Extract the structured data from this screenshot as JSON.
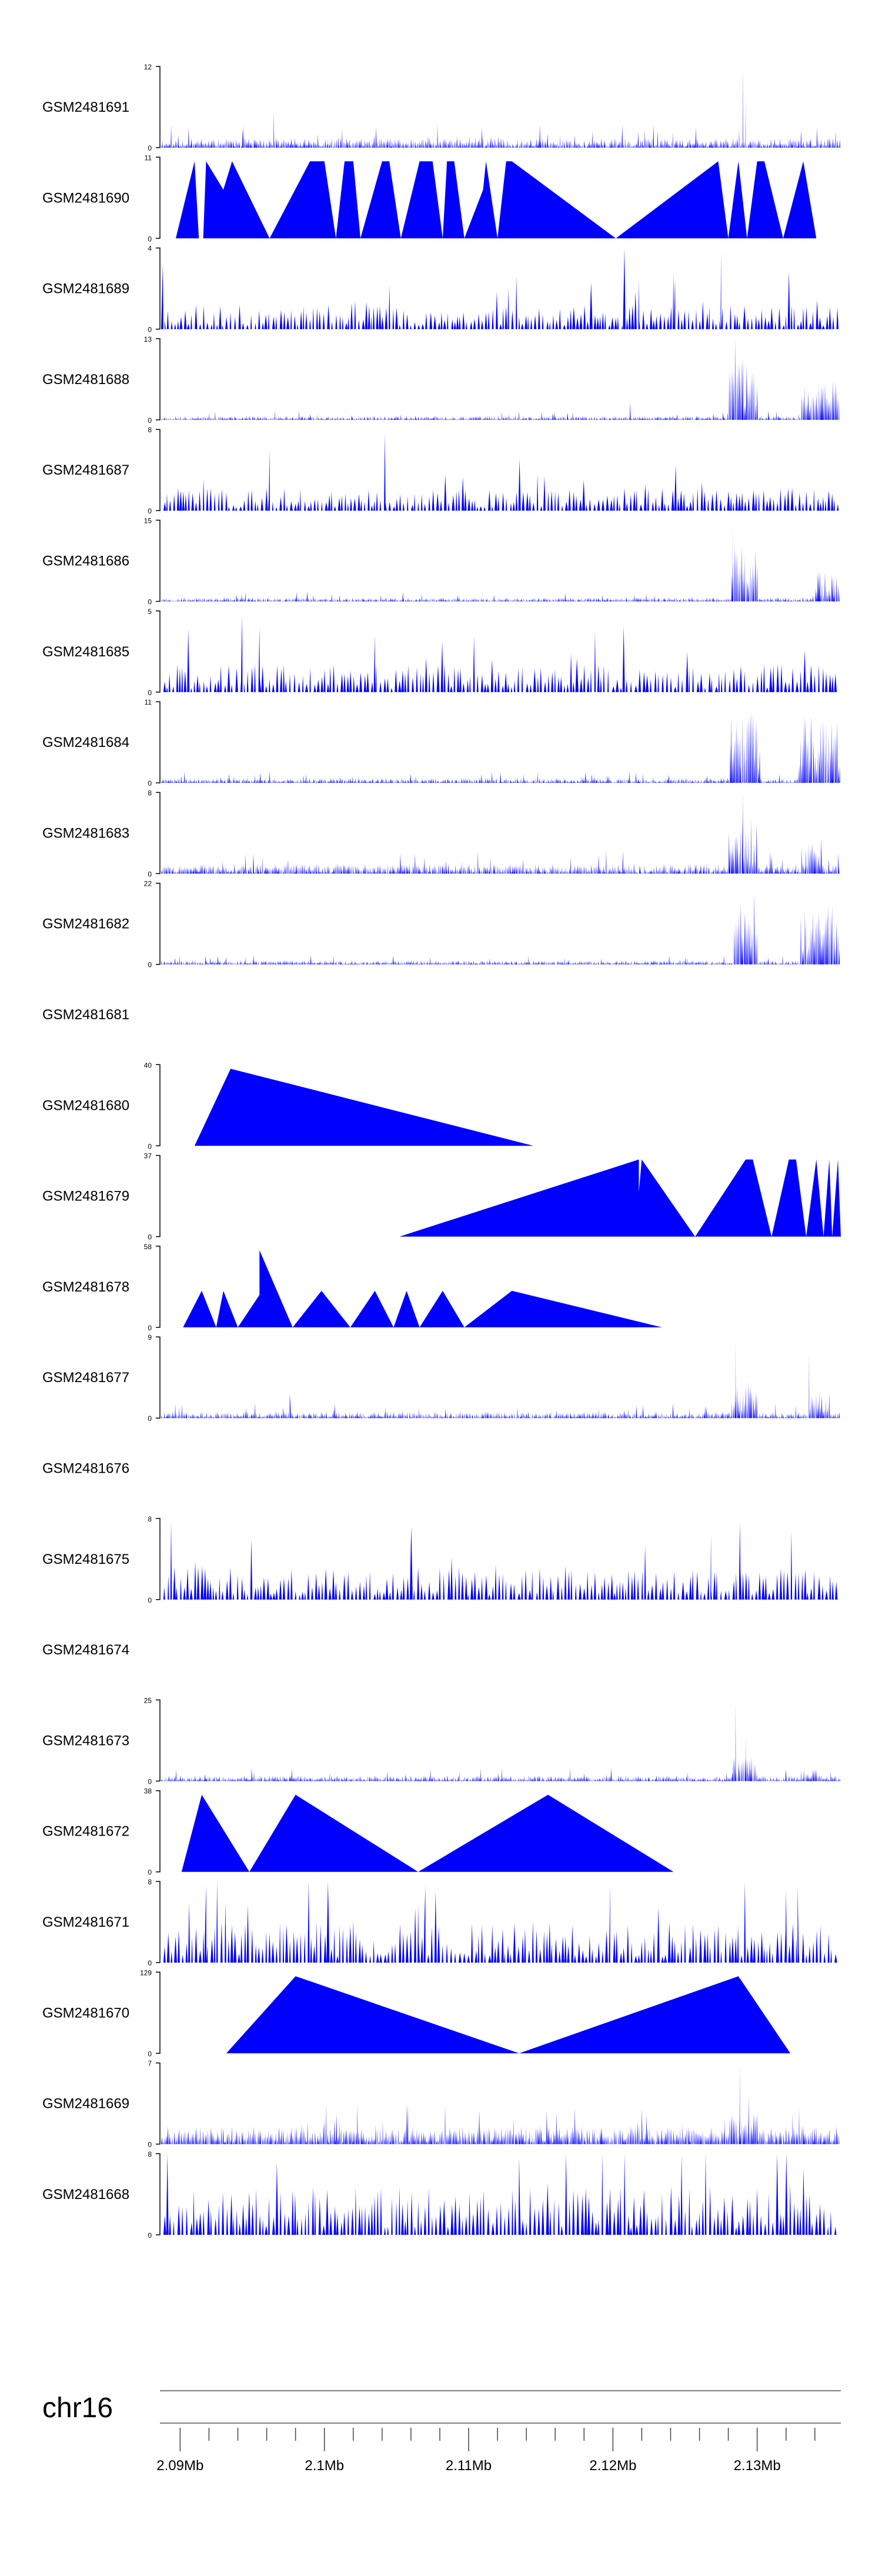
{
  "chart_data": {
    "type": "area",
    "color": "#0000ff",
    "chromosome": "chr16",
    "x_range_mb": [
      2.0886,
      2.1358
    ],
    "x_ticks": [
      {
        "value": 2.09,
        "label": "2.09Mb"
      },
      {
        "value": 2.1,
        "label": "2.1Mb"
      },
      {
        "value": 2.11,
        "label": "2.11Mb"
      },
      {
        "value": 2.12,
        "label": "2.12Mb"
      },
      {
        "value": 2.13,
        "label": "2.13Mb"
      }
    ],
    "minor_tick_step_mb": 0.002,
    "tracks": [
      {
        "name": "GSM2481691",
        "ymin": 0,
        "ymax": 12,
        "style": "dense",
        "seed": 11,
        "base": 0.12,
        "spikes": [
          [
            2.0965,
            0.45
          ],
          [
            2.129,
            1.0
          ],
          [
            2.1292,
            0.6
          ]
        ]
      },
      {
        "name": "GSM2481690",
        "ymin": 0,
        "ymax": 11,
        "profile": [
          [
            2.0897,
            0
          ],
          [
            2.091,
            0.95
          ],
          [
            2.0913,
            0
          ],
          [
            2.0916,
            0
          ],
          [
            2.0918,
            0.95
          ],
          [
            2.093,
            0.6
          ],
          [
            2.0936,
            0.95
          ],
          [
            2.0962,
            0
          ],
          [
            2.099,
            0.95
          ],
          [
            2.1,
            0.95
          ],
          [
            2.1008,
            0
          ],
          [
            2.1014,
            0.95
          ],
          [
            2.102,
            0.95
          ],
          [
            2.1025,
            0
          ],
          [
            2.104,
            0.95
          ],
          [
            2.1045,
            0.95
          ],
          [
            2.1053,
            0
          ],
          [
            2.1066,
            0.95
          ],
          [
            2.1075,
            0.95
          ],
          [
            2.1082,
            0
          ],
          [
            2.1085,
            0.95
          ],
          [
            2.109,
            0.95
          ],
          [
            2.1097,
            0
          ],
          [
            2.111,
            0.6
          ],
          [
            2.1112,
            0.95
          ],
          [
            2.112,
            0
          ],
          [
            2.1126,
            0.95
          ],
          [
            2.113,
            0.95
          ],
          [
            2.1202,
            0
          ],
          [
            2.1273,
            0.95
          ],
          [
            2.128,
            0
          ],
          [
            2.1287,
            0.95
          ],
          [
            2.1293,
            0
          ],
          [
            2.13,
            0.95
          ],
          [
            2.1305,
            0.95
          ],
          [
            2.1318,
            0
          ],
          [
            2.1332,
            0.95
          ],
          [
            2.1341,
            0
          ]
        ]
      },
      {
        "name": "GSM2481689",
        "ymin": 0,
        "ymax": 4,
        "style": "sparse",
        "seed": 23,
        "base": 0.3,
        "spikes": [
          [
            2.0888,
            0.8
          ],
          [
            2.1208,
            1.0
          ],
          [
            2.1218,
            0.6
          ],
          [
            2.1242,
            0.7
          ],
          [
            2.1275,
            0.95
          ]
        ]
      },
      {
        "name": "GSM2481688",
        "ymin": 0,
        "ymax": 13,
        "style": "dense",
        "seed": 37,
        "base": 0.05,
        "cluster": [
          2.128,
          2.13,
          0.8
        ],
        "cluster2": [
          2.133,
          2.1358,
          0.5
        ],
        "spikes": [
          [
            2.1212,
            0.22
          ],
          [
            2.1285,
            1.0
          ]
        ]
      },
      {
        "name": "GSM2481687",
        "ymin": 0,
        "ymax": 8,
        "style": "sparse",
        "seed": 41,
        "base": 0.28,
        "spikes": [
          [
            2.0962,
            0.75
          ],
          [
            2.1042,
            0.95
          ]
        ]
      },
      {
        "name": "GSM2481686",
        "ymin": 0,
        "ymax": 15,
        "style": "dense",
        "seed": 53,
        "base": 0.05,
        "cluster": [
          2.1282,
          2.13,
          0.8
        ],
        "cluster2": [
          2.134,
          2.1358,
          0.4
        ],
        "spikes": [
          [
            2.1283,
            1.0
          ]
        ]
      },
      {
        "name": "GSM2481685",
        "ymin": 0,
        "ymax": 5,
        "style": "sparse",
        "seed": 67,
        "base": 0.35,
        "spikes": [
          [
            2.0943,
            0.95
          ],
          [
            2.0955,
            0.8
          ],
          [
            2.1035,
            0.7
          ]
        ]
      },
      {
        "name": "GSM2481684",
        "ymin": 0,
        "ymax": 11,
        "style": "dense",
        "seed": 71,
        "base": 0.06,
        "cluster": [
          2.128,
          2.1302,
          0.9
        ],
        "cluster2": [
          2.1328,
          2.1358,
          0.85
        ],
        "spikes": []
      },
      {
        "name": "GSM2481683",
        "ymin": 0,
        "ymax": 8,
        "style": "dense",
        "seed": 83,
        "base": 0.12,
        "cluster": [
          2.128,
          2.13,
          0.7
        ],
        "cluster2": [
          2.133,
          2.1345,
          0.45
        ],
        "spikes": [
          [
            2.129,
            1.0
          ]
        ]
      },
      {
        "name": "GSM2481682",
        "ymin": 0,
        "ymax": 22,
        "style": "dense",
        "seed": 97,
        "base": 0.05,
        "cluster": [
          2.1283,
          2.13,
          0.95
        ],
        "cluster2": [
          2.133,
          2.1358,
          0.8
        ],
        "spikes": []
      },
      {
        "name": "GSM2481681",
        "empty": true
      },
      {
        "name": "GSM2481680",
        "ymin": 0,
        "ymax": 40,
        "profile": [
          [
            2.091,
            0
          ],
          [
            2.0935,
            0.95
          ],
          [
            2.1145,
            0
          ]
        ]
      },
      {
        "name": "GSM2481679",
        "ymin": 0,
        "ymax": 37,
        "profile": [
          [
            2.1052,
            0
          ],
          [
            2.1218,
            0.95
          ],
          [
            2.1218,
            0.55
          ],
          [
            2.122,
            0.95
          ],
          [
            2.1257,
            0
          ],
          [
            2.1292,
            0.95
          ],
          [
            2.1297,
            0.95
          ],
          [
            2.131,
            0
          ],
          [
            2.1322,
            0.95
          ],
          [
            2.1327,
            0.95
          ],
          [
            2.1334,
            0
          ],
          [
            2.1341,
            0.95
          ],
          [
            2.1346,
            0
          ],
          [
            2.135,
            0.95
          ],
          [
            2.1352,
            0
          ],
          [
            2.1356,
            0.95
          ],
          [
            2.1358,
            0
          ]
        ]
      },
      {
        "name": "GSM2481678",
        "ymin": 0,
        "ymax": 58,
        "profile": [
          [
            2.0902,
            0
          ],
          [
            2.0915,
            0.45
          ],
          [
            2.0925,
            0
          ],
          [
            2.093,
            0.45
          ],
          [
            2.094,
            0
          ],
          [
            2.0955,
            0.4
          ],
          [
            2.0955,
            0.95
          ],
          [
            2.0978,
            0
          ],
          [
            2.0998,
            0.45
          ],
          [
            2.1018,
            0
          ],
          [
            2.1035,
            0.45
          ],
          [
            2.1048,
            0
          ],
          [
            2.1057,
            0.45
          ],
          [
            2.1066,
            0
          ],
          [
            2.1082,
            0.45
          ],
          [
            2.1097,
            0
          ],
          [
            2.113,
            0.45
          ],
          [
            2.1234,
            0
          ]
        ]
      },
      {
        "name": "GSM2481677",
        "ymin": 0,
        "ymax": 9,
        "style": "dense",
        "seed": 109,
        "base": 0.08,
        "cluster": [
          2.1282,
          2.13,
          0.45
        ],
        "cluster2": [
          2.1336,
          2.135,
          0.4
        ],
        "spikes": [
          [
            2.0976,
            0.3
          ],
          [
            2.1285,
            0.95
          ],
          [
            2.1336,
            0.8
          ]
        ]
      },
      {
        "name": "GSM2481676",
        "empty": true
      },
      {
        "name": "GSM2481675",
        "ymin": 0,
        "ymax": 8,
        "style": "sparse",
        "seed": 113,
        "base": 0.4,
        "spikes": [
          [
            2.1268,
            0.8
          ],
          [
            2.1288,
            0.95
          ]
        ]
      },
      {
        "name": "GSM2481674",
        "empty": true
      },
      {
        "name": "GSM2481673",
        "ymin": 0,
        "ymax": 25,
        "style": "dense",
        "seed": 127,
        "base": 0.07,
        "cluster": [
          2.1282,
          2.13,
          0.3
        ],
        "cluster2": [
          2.133,
          2.1345,
          0.15
        ],
        "spikes": [
          [
            2.1285,
            1.0
          ],
          [
            2.1292,
            0.55
          ]
        ]
      },
      {
        "name": "GSM2481672",
        "ymin": 0,
        "ymax": 38,
        "profile": [
          [
            2.0901,
            0
          ],
          [
            2.0915,
            0.95
          ],
          [
            2.0948,
            0
          ],
          [
            2.098,
            0.95
          ],
          [
            2.1065,
            0
          ],
          [
            2.1155,
            0.95
          ],
          [
            2.1242,
            0
          ]
        ]
      },
      {
        "name": "GSM2481671",
        "ymin": 0,
        "ymax": 8,
        "style": "sparse",
        "seed": 131,
        "base": 0.5,
        "spikes": [
          [
            2.0918,
            0.95
          ],
          [
            2.107,
            0.95
          ],
          [
            2.1065,
            0.7
          ],
          [
            2.1198,
            0.95
          ],
          [
            2.132,
            0.9
          ],
          [
            2.1328,
            0.95
          ]
        ]
      },
      {
        "name": "GSM2481670",
        "ymin": 0,
        "ymax": 129,
        "profile": [
          [
            2.0932,
            0
          ],
          [
            2.098,
            0.95
          ],
          [
            2.1135,
            0
          ],
          [
            2.1287,
            0.95
          ],
          [
            2.1323,
            0
          ]
        ]
      },
      {
        "name": "GSM2481669",
        "ymin": 0,
        "ymax": 7,
        "style": "dense",
        "seed": 139,
        "base": 0.22,
        "cluster": [
          2.128,
          2.13,
          0.4
        ],
        "spikes": [
          [
            2.1288,
            1.0
          ],
          [
            2.1294,
            0.6
          ]
        ]
      },
      {
        "name": "GSM2481668",
        "ymin": 0,
        "ymax": 8,
        "style": "sparse",
        "seed": 149,
        "base": 0.6,
        "spikes": [
          [
            2.1135,
            0.95
          ]
        ]
      }
    ]
  }
}
